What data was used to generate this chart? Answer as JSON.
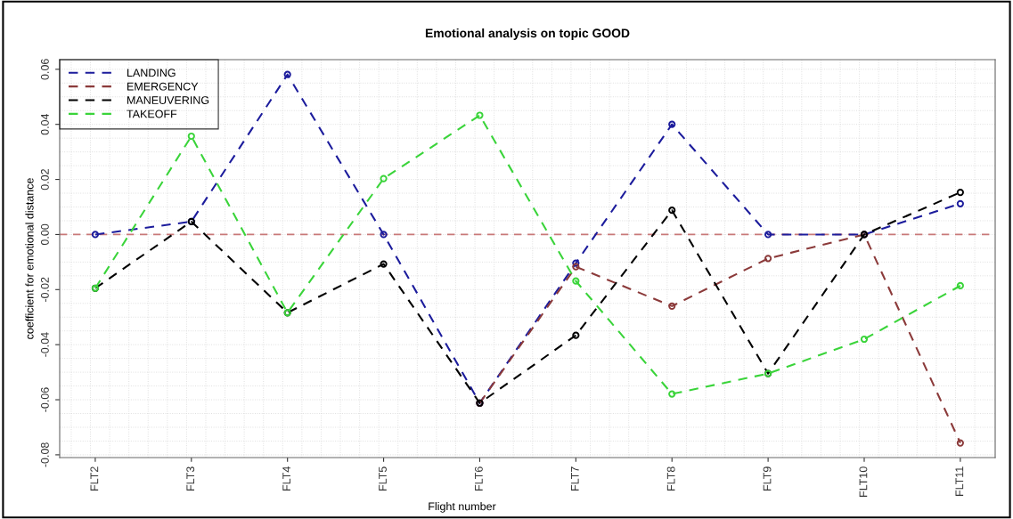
{
  "chart_data": {
    "type": "line",
    "title": "Emotional analysis on topic GOOD",
    "xlabel": "Flight number",
    "ylabel": "coefficient for emotional distance",
    "categories": [
      "FLT2",
      "FLT3",
      "FLT4",
      "FLT5",
      "FLT6",
      "FLT7",
      "FLT8",
      "FLT9",
      "FLT10",
      "FLT11"
    ],
    "series": [
      {
        "name": "LANDING",
        "color": "#1c1c9c",
        "values": [
          0.0,
          0.0047,
          0.0581,
          0.0,
          -0.0612,
          -0.0104,
          0.04,
          0.0,
          0.0,
          0.0112
        ]
      },
      {
        "name": "EMERGENCY",
        "color": "#8b3a3a",
        "values": [
          null,
          null,
          null,
          null,
          -0.0612,
          -0.0117,
          -0.026,
          -0.0087,
          0.0,
          -0.0757
        ]
      },
      {
        "name": "MANEUVERING",
        "color": "#000000",
        "values": [
          -0.0195,
          0.0047,
          -0.0284,
          -0.0107,
          -0.0612,
          -0.0366,
          0.0088,
          -0.0505,
          0.0,
          0.0153
        ]
      },
      {
        "name": "TAKEOFF",
        "color": "#3ad43a",
        "values": [
          -0.0195,
          0.0357,
          -0.0284,
          0.0203,
          0.0433,
          -0.0169,
          -0.0579,
          -0.0505,
          -0.038,
          -0.0186
        ]
      }
    ],
    "ylim": [
      -0.081,
      0.0635
    ],
    "yticks": [
      {
        "value": -0.08,
        "label": "-0.08"
      },
      {
        "value": -0.06,
        "label": "-0.06"
      },
      {
        "value": -0.04,
        "label": "-0.04"
      },
      {
        "value": -0.02,
        "label": "-0.02"
      },
      {
        "value": 0,
        "label": "0.00"
      },
      {
        "value": 0.02,
        "label": "0.02"
      },
      {
        "value": 0.04,
        "label": "0.04"
      },
      {
        "value": 0.06,
        "label": "0.06"
      }
    ],
    "ref_lines": [
      {
        "axis": "y",
        "value": 0,
        "color": "#c87878",
        "line_style": "dashed"
      }
    ],
    "grid": true,
    "legend": "top left",
    "marker": "circle",
    "line_style": "dashed"
  }
}
